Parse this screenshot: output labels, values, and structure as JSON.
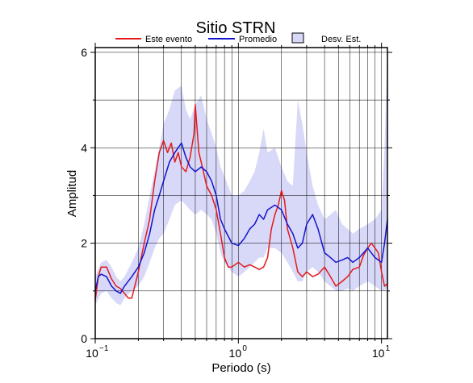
{
  "chart_data": {
    "type": "line",
    "title": "Sitio STRN",
    "xlabel": "Periodo (s)",
    "ylabel": "Amplitud",
    "x_scale": "log",
    "xlim": [
      0.1,
      11
    ],
    "ylim": [
      0,
      6.1
    ],
    "y_ticks": [
      "0",
      "2",
      "4",
      "6"
    ],
    "x_ticks": [
      {
        "base": "10",
        "exp": "−1"
      },
      {
        "base": "10",
        "exp": "0"
      },
      {
        "base": "10",
        "exp": "1"
      }
    ],
    "grid": true,
    "legend_position": "top",
    "legend": [
      "Este evento",
      "Promedio",
      "Desv. Est."
    ],
    "series": [
      {
        "name": "Este evento",
        "color": "#e31a1c",
        "x": [
          0.1,
          0.105,
          0.11,
          0.12,
          0.13,
          0.14,
          0.15,
          0.16,
          0.17,
          0.18,
          0.2,
          0.22,
          0.24,
          0.26,
          0.28,
          0.3,
          0.32,
          0.34,
          0.36,
          0.38,
          0.4,
          0.43,
          0.46,
          0.49,
          0.5,
          0.53,
          0.56,
          0.6,
          0.65,
          0.7,
          0.75,
          0.8,
          0.85,
          0.9,
          1.0,
          1.1,
          1.2,
          1.3,
          1.4,
          1.5,
          1.6,
          1.7,
          1.8,
          1.9,
          2.0,
          2.1,
          2.2,
          2.4,
          2.6,
          2.8,
          3.0,
          3.3,
          3.6,
          4.0,
          4.4,
          4.8,
          5.3,
          5.8,
          6.3,
          7.0,
          7.5,
          8.0,
          8.5,
          9.0,
          9.5,
          10.0,
          10.5,
          11.0
        ],
        "values": [
          0.8,
          1.3,
          1.5,
          1.5,
          1.25,
          1.1,
          1.05,
          0.95,
          0.85,
          0.85,
          1.4,
          2.0,
          2.5,
          3.3,
          3.9,
          4.15,
          3.9,
          4.1,
          3.7,
          3.9,
          3.6,
          3.5,
          3.8,
          4.3,
          4.9,
          3.9,
          3.6,
          3.2,
          3.0,
          2.7,
          2.2,
          1.7,
          1.5,
          1.5,
          1.6,
          1.5,
          1.55,
          1.5,
          1.45,
          1.5,
          1.7,
          2.3,
          2.6,
          2.8,
          3.1,
          2.9,
          2.3,
          1.9,
          1.4,
          1.3,
          1.4,
          1.3,
          1.35,
          1.5,
          1.3,
          1.1,
          1.2,
          1.3,
          1.45,
          1.5,
          1.75,
          1.9,
          2.0,
          1.9,
          1.8,
          1.4,
          1.1,
          1.15
        ]
      },
      {
        "name": "Promedio",
        "color": "#1414cc",
        "x": [
          0.1,
          0.105,
          0.11,
          0.12,
          0.13,
          0.14,
          0.15,
          0.16,
          0.18,
          0.2,
          0.22,
          0.24,
          0.26,
          0.28,
          0.3,
          0.33,
          0.36,
          0.4,
          0.43,
          0.46,
          0.5,
          0.55,
          0.6,
          0.65,
          0.7,
          0.75,
          0.8,
          0.9,
          1.0,
          1.1,
          1.2,
          1.3,
          1.4,
          1.5,
          1.6,
          1.8,
          2.0,
          2.2,
          2.4,
          2.6,
          2.8,
          3.0,
          3.3,
          3.6,
          4.0,
          4.4,
          4.8,
          5.3,
          5.8,
          6.3,
          7.0,
          7.5,
          8.0,
          9.0,
          10.0,
          10.5,
          11.0
        ],
        "values": [
          1.0,
          1.3,
          1.35,
          1.3,
          1.1,
          1.0,
          0.95,
          1.1,
          1.3,
          1.5,
          1.8,
          2.2,
          2.7,
          3.0,
          3.3,
          3.7,
          3.9,
          4.1,
          3.8,
          3.6,
          3.5,
          3.6,
          3.5,
          3.3,
          3.0,
          2.5,
          2.3,
          2.0,
          1.95,
          2.1,
          2.3,
          2.4,
          2.6,
          2.5,
          2.7,
          2.8,
          2.7,
          2.4,
          2.2,
          1.9,
          2.0,
          2.4,
          2.6,
          2.3,
          1.8,
          1.7,
          1.6,
          1.65,
          1.7,
          1.6,
          1.7,
          1.8,
          1.9,
          1.7,
          1.6,
          2.0,
          2.5
        ]
      },
      {
        "name": "Desv. Est.",
        "color": "#d8d8f8",
        "type": "band",
        "x": [
          0.1,
          0.11,
          0.12,
          0.13,
          0.14,
          0.15,
          0.16,
          0.18,
          0.2,
          0.22,
          0.24,
          0.26,
          0.28,
          0.3,
          0.33,
          0.36,
          0.4,
          0.43,
          0.46,
          0.5,
          0.55,
          0.6,
          0.65,
          0.7,
          0.75,
          0.8,
          0.9,
          1.0,
          1.1,
          1.2,
          1.3,
          1.4,
          1.5,
          1.6,
          1.8,
          2.0,
          2.2,
          2.4,
          2.6,
          2.8,
          3.0,
          3.3,
          3.6,
          4.0,
          4.4,
          4.8,
          5.3,
          5.8,
          6.3,
          7.0,
          8.0,
          9.0,
          10.0,
          10.5,
          11.0
        ],
        "upper": [
          1.3,
          1.6,
          1.65,
          1.5,
          1.3,
          1.2,
          1.3,
          1.6,
          1.9,
          2.4,
          3.0,
          3.5,
          4.0,
          4.5,
          4.8,
          5.2,
          5.3,
          4.8,
          4.6,
          4.9,
          5.1,
          4.6,
          4.3,
          4.0,
          3.6,
          3.4,
          3.0,
          3.0,
          3.1,
          3.3,
          3.5,
          3.9,
          4.4,
          3.9,
          4.0,
          3.6,
          3.3,
          3.2,
          5.0,
          4.5,
          3.9,
          3.2,
          2.8,
          2.5,
          2.6,
          2.7,
          2.4,
          2.3,
          2.2,
          2.3,
          2.4,
          2.5,
          2.7,
          4.0,
          6.0
        ],
        "lower": [
          0.7,
          0.95,
          1.0,
          0.85,
          0.75,
          0.7,
          0.85,
          1.0,
          1.1,
          1.3,
          1.6,
          1.9,
          2.1,
          2.2,
          2.5,
          2.8,
          2.9,
          2.8,
          2.7,
          2.6,
          2.7,
          2.6,
          2.5,
          2.2,
          1.8,
          1.6,
          1.4,
          1.3,
          1.4,
          1.5,
          1.6,
          1.7,
          1.7,
          1.9,
          1.9,
          1.8,
          1.6,
          1.4,
          1.2,
          1.2,
          1.4,
          1.5,
          1.4,
          1.2,
          1.1,
          1.0,
          1.0,
          1.05,
          1.0,
          1.1,
          1.2,
          1.1,
          1.0,
          1.0,
          1.1
        ]
      }
    ]
  }
}
